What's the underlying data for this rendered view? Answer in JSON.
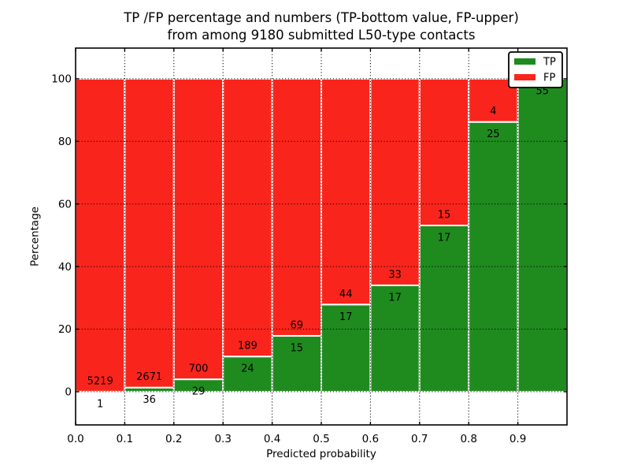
{
  "chart_data": {
    "type": "bar",
    "stacked": true,
    "normalized_to_percent": 100,
    "title_line1": "TP /FP percentage and numbers (TP-bottom value, FP-upper)",
    "title_line2": "from among 9180 submitted L50-type contacts",
    "xlabel": "Predicted probability",
    "ylabel": "Percentage",
    "xlim": [
      0.0,
      1.0
    ],
    "ylim": [
      -10.6,
      109.8
    ],
    "grid": true,
    "legend_position": "upper right",
    "bin_edges": [
      0.0,
      0.1,
      0.2,
      0.3,
      0.4,
      0.5,
      0.6,
      0.7,
      0.8,
      0.9,
      1.0
    ],
    "xtick_values": [
      0.0,
      0.1,
      0.2,
      0.3,
      0.4,
      0.5,
      0.6,
      0.7,
      0.8,
      0.9
    ],
    "xtick_labels": [
      "0.0",
      "0.1",
      "0.2",
      "0.3",
      "0.4",
      "0.5",
      "0.6",
      "0.7",
      "0.8",
      "0.9"
    ],
    "ytick_values": [
      0,
      20,
      40,
      60,
      80,
      100
    ],
    "ytick_labels": [
      "0",
      "20",
      "40",
      "60",
      "80",
      "100"
    ],
    "series": [
      {
        "name": "TP",
        "color": "#1f8b1f",
        "position": "bottom",
        "counts": [
          1,
          36,
          29,
          24,
          15,
          17,
          17,
          17,
          25,
          55
        ]
      },
      {
        "name": "FP",
        "color": "#f9251c",
        "position": "top",
        "counts": [
          5219,
          2671,
          700,
          189,
          69,
          44,
          33,
          15,
          4,
          0
        ]
      }
    ],
    "bar_edge_color": "#ffffff",
    "label_note": "TP count drawn below the TP/FP boundary, FP count above it"
  }
}
